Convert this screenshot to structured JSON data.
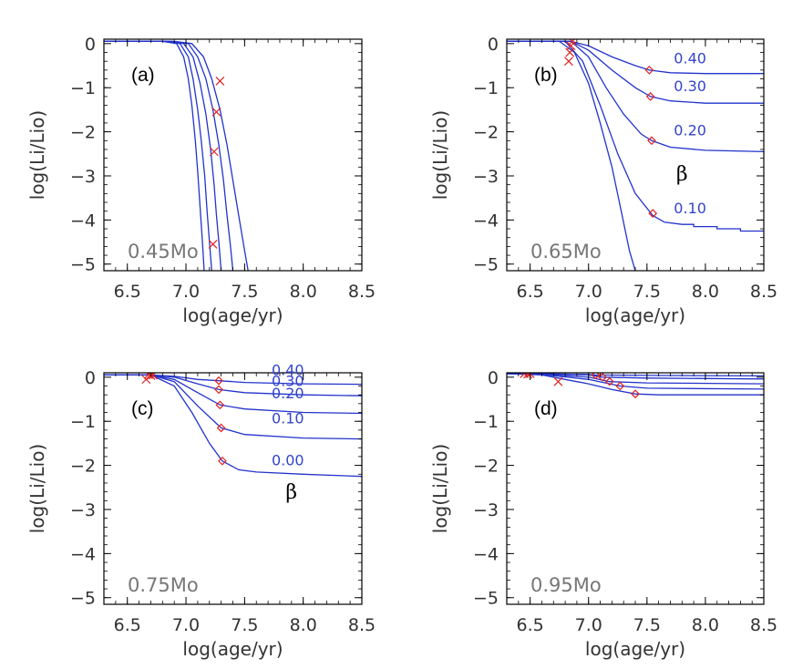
{
  "colors": {
    "curve": "#2233cc",
    "marker": "#e02020",
    "axis": "#000000",
    "text": "#333333",
    "mass_label": "#777777",
    "curve_label": "#3344cc"
  },
  "chart_data": [
    {
      "type": "line",
      "panel_label": "(a)",
      "mass_label": "0.45Mo",
      "xlabel": "log(age/yr)",
      "ylabel": "log(Li/Lio)",
      "xlim": [
        6.3,
        8.5
      ],
      "ylim": [
        -5.15,
        0.1
      ],
      "xticks": [
        6.5,
        7.0,
        7.5,
        8.0,
        8.5
      ],
      "xtick_labels": [
        "6.5",
        "7.0",
        "7.5",
        "8.0",
        "8.5"
      ],
      "yticks": [
        0,
        -1,
        -2,
        -3,
        -4,
        -5
      ],
      "ytick_labels": [
        "0",
        "−1",
        "−2",
        "−3",
        "−4",
        "−5"
      ],
      "beta_symbol": "",
      "series": [
        {
          "name": "curve-1",
          "x": [
            6.3,
            6.8,
            6.92,
            6.98,
            7.02,
            7.05,
            7.08,
            7.1,
            7.12,
            7.14,
            7.155
          ],
          "y": [
            0.05,
            0.05,
            0.0,
            -0.3,
            -0.8,
            -1.4,
            -2.2,
            -2.9,
            -3.7,
            -4.5,
            -5.15
          ]
        },
        {
          "name": "curve-2",
          "x": [
            6.3,
            6.82,
            6.95,
            7.02,
            7.06,
            7.1,
            7.13,
            7.16,
            7.18,
            7.2,
            7.22
          ],
          "y": [
            0.05,
            0.05,
            0.0,
            -0.3,
            -0.8,
            -1.5,
            -2.2,
            -3.0,
            -3.8,
            -4.5,
            -5.15
          ]
        },
        {
          "name": "curve-3",
          "x": [
            6.3,
            6.85,
            6.98,
            7.06,
            7.12,
            7.17,
            7.21,
            7.24,
            7.26,
            7.28,
            7.3
          ],
          "y": [
            0.05,
            0.05,
            0.0,
            -0.3,
            -0.9,
            -1.6,
            -2.4,
            -3.2,
            -3.9,
            -4.5,
            -5.15
          ]
        },
        {
          "name": "curve-4",
          "x": [
            6.3,
            6.88,
            7.02,
            7.1,
            7.17,
            7.23,
            7.28,
            7.32,
            7.35,
            7.38,
            7.4
          ],
          "y": [
            0.05,
            0.05,
            0.0,
            -0.3,
            -0.8,
            -1.5,
            -2.3,
            -3.1,
            -3.9,
            -4.6,
            -5.15
          ]
        },
        {
          "name": "curve-5",
          "x": [
            6.3,
            6.9,
            7.05,
            7.15,
            7.22,
            7.29,
            7.35,
            7.4,
            7.45,
            7.5,
            7.53
          ],
          "y": [
            0.05,
            0.05,
            0.0,
            -0.3,
            -0.8,
            -1.5,
            -2.3,
            -3.1,
            -3.9,
            -4.7,
            -5.15
          ]
        }
      ],
      "markers": [
        {
          "symbol": "x",
          "x": 7.29,
          "y": -0.85
        },
        {
          "symbol": "x",
          "x": 7.26,
          "y": -1.55
        },
        {
          "symbol": "x",
          "x": 7.24,
          "y": -2.45
        },
        {
          "symbol": "x",
          "x": 7.23,
          "y": -4.55
        }
      ],
      "curve_labels": []
    },
    {
      "type": "line",
      "panel_label": "(b)",
      "mass_label": "0.65Mo",
      "xlabel": "log(age/yr)",
      "ylabel": "log(Li/Lio)",
      "xlim": [
        6.3,
        8.5
      ],
      "ylim": [
        -5.15,
        0.1
      ],
      "xticks": [
        6.5,
        7.0,
        7.5,
        8.0,
        8.5
      ],
      "xtick_labels": [
        "6.5",
        "7.0",
        "7.5",
        "8.0",
        "8.5"
      ],
      "yticks": [
        0,
        -1,
        -2,
        -3,
        -4,
        -5
      ],
      "ytick_labels": [
        "0",
        "−1",
        "−2",
        "−3",
        "−4",
        "−5"
      ],
      "beta_symbol": "β",
      "beta_position": [
        7.75,
        -3.1
      ],
      "series": [
        {
          "name": "beta-0.40",
          "x": [
            6.3,
            6.85,
            7.0,
            7.2,
            7.4,
            7.52,
            7.7,
            8.0,
            8.5
          ],
          "y": [
            0.05,
            0.05,
            -0.05,
            -0.3,
            -0.5,
            -0.6,
            -0.66,
            -0.68,
            -0.68
          ]
        },
        {
          "name": "beta-0.30",
          "x": [
            6.3,
            6.85,
            7.0,
            7.2,
            7.4,
            7.53,
            7.7,
            8.0,
            8.5
          ],
          "y": [
            0.05,
            0.05,
            -0.15,
            -0.6,
            -1.0,
            -1.2,
            -1.3,
            -1.35,
            -1.35
          ]
        },
        {
          "name": "beta-0.20",
          "x": [
            6.3,
            6.85,
            7.0,
            7.15,
            7.3,
            7.45,
            7.54,
            7.7,
            8.0,
            8.5
          ],
          "y": [
            0.05,
            0.05,
            -0.3,
            -1.0,
            -1.6,
            -2.05,
            -2.2,
            -2.35,
            -2.42,
            -2.45
          ]
        },
        {
          "name": "beta-0.10",
          "x": [
            6.3,
            6.8,
            6.95,
            7.1,
            7.25,
            7.4,
            7.55,
            7.65,
            7.8,
            7.9,
            7.9,
            8.1,
            8.1,
            8.3,
            8.3,
            8.5
          ],
          "y": [
            0.05,
            0.05,
            -0.4,
            -1.4,
            -2.5,
            -3.4,
            -3.9,
            -4.05,
            -4.1,
            -4.1,
            -4.15,
            -4.15,
            -4.2,
            -4.2,
            -4.25,
            -4.25
          ]
        },
        {
          "name": "beta-0.00",
          "x": [
            6.3,
            6.75,
            6.88,
            7.0,
            7.1,
            7.2,
            7.28,
            7.35,
            7.4
          ],
          "y": [
            0.05,
            0.05,
            -0.2,
            -0.9,
            -1.8,
            -2.8,
            -3.8,
            -4.7,
            -5.15
          ]
        }
      ],
      "markers": [
        {
          "symbol": "diamond",
          "x": 7.52,
          "y": -0.6
        },
        {
          "symbol": "diamond",
          "x": 7.53,
          "y": -1.2
        },
        {
          "symbol": "diamond",
          "x": 7.54,
          "y": -2.2
        },
        {
          "symbol": "diamond",
          "x": 7.55,
          "y": -3.85
        },
        {
          "symbol": "x",
          "x": 6.86,
          "y": 0.05
        },
        {
          "symbol": "x",
          "x": 6.85,
          "y": -0.05
        },
        {
          "symbol": "x",
          "x": 6.84,
          "y": -0.2
        },
        {
          "symbol": "x",
          "x": 6.83,
          "y": -0.4
        }
      ],
      "curve_labels": [
        {
          "text": "0.40",
          "x": 7.73,
          "y": -0.45
        },
        {
          "text": "0.30",
          "x": 7.73,
          "y": -1.08
        },
        {
          "text": "0.20",
          "x": 7.73,
          "y": -2.08
        },
        {
          "text": "0.10",
          "x": 7.73,
          "y": -3.85
        }
      ]
    },
    {
      "type": "line",
      "panel_label": "(c)",
      "mass_label": "0.75Mo",
      "xlabel": "log(age/yr)",
      "ylabel": "log(Li/Lio)",
      "xlim": [
        6.3,
        8.5
      ],
      "ylim": [
        -5.15,
        0.1
      ],
      "xticks": [
        6.5,
        7.0,
        7.5,
        8.0,
        8.5
      ],
      "xtick_labels": [
        "6.5",
        "7.0",
        "7.5",
        "8.0",
        "8.5"
      ],
      "yticks": [
        0,
        -1,
        -2,
        -3,
        -4,
        -5
      ],
      "ytick_labels": [
        "0",
        "−1",
        "−2",
        "−3",
        "−4",
        "−5"
      ],
      "beta_symbol": "β",
      "beta_position": [
        7.85,
        -2.75
      ],
      "series": [
        {
          "name": "beta-0.40",
          "x": [
            6.3,
            6.7,
            6.9,
            7.1,
            7.28,
            7.5,
            8.0,
            8.5
          ],
          "y": [
            0.05,
            0.05,
            0.02,
            -0.05,
            -0.08,
            -0.12,
            -0.15,
            -0.16
          ]
        },
        {
          "name": "beta-0.30",
          "x": [
            6.3,
            6.7,
            6.9,
            7.1,
            7.28,
            7.5,
            8.0,
            8.5
          ],
          "y": [
            0.05,
            0.05,
            0.0,
            -0.15,
            -0.28,
            -0.35,
            -0.4,
            -0.42
          ]
        },
        {
          "name": "beta-0.20",
          "x": [
            6.3,
            6.7,
            6.9,
            7.1,
            7.29,
            7.5,
            8.0,
            8.5
          ],
          "y": [
            0.05,
            0.05,
            -0.05,
            -0.35,
            -0.63,
            -0.72,
            -0.8,
            -0.82
          ]
        },
        {
          "name": "beta-0.10",
          "x": [
            6.3,
            6.7,
            6.9,
            7.1,
            7.3,
            7.5,
            8.0,
            8.5
          ],
          "y": [
            0.05,
            0.05,
            -0.1,
            -0.65,
            -1.15,
            -1.3,
            -1.38,
            -1.4
          ]
        },
        {
          "name": "beta-0.00",
          "x": [
            6.3,
            6.7,
            6.9,
            7.05,
            7.2,
            7.31,
            7.45,
            7.6,
            8.0,
            8.5
          ],
          "y": [
            0.05,
            0.05,
            -0.2,
            -0.8,
            -1.5,
            -1.9,
            -2.1,
            -2.15,
            -2.2,
            -2.25
          ]
        }
      ],
      "markers": [
        {
          "symbol": "diamond",
          "x": 7.28,
          "y": -0.08
        },
        {
          "symbol": "diamond",
          "x": 7.28,
          "y": -0.28
        },
        {
          "symbol": "diamond",
          "x": 7.29,
          "y": -0.63
        },
        {
          "symbol": "diamond",
          "x": 7.3,
          "y": -1.15
        },
        {
          "symbol": "diamond",
          "x": 7.31,
          "y": -1.9
        },
        {
          "symbol": "x",
          "x": 6.68,
          "y": 0.06
        },
        {
          "symbol": "x",
          "x": 6.7,
          "y": 0.04
        },
        {
          "symbol": "x",
          "x": 6.72,
          "y": 0.05
        },
        {
          "symbol": "x",
          "x": 6.66,
          "y": -0.05
        }
      ],
      "curve_labels": [
        {
          "text": "0.40",
          "x": 7.73,
          "y": 0.05
        },
        {
          "text": "0.30",
          "x": 7.73,
          "y": -0.2
        },
        {
          "text": "0.20",
          "x": 7.73,
          "y": -0.48
        },
        {
          "text": "0.10",
          "x": 7.73,
          "y": -1.05
        },
        {
          "text": "0.00",
          "x": 7.73,
          "y": -2.0
        }
      ]
    },
    {
      "type": "line",
      "panel_label": "(d)",
      "mass_label": "0.95Mo",
      "xlabel": "log(age/yr)",
      "ylabel": "log(Li/Lio)",
      "xlim": [
        6.3,
        8.5
      ],
      "ylim": [
        -5.15,
        0.1
      ],
      "xticks": [
        6.5,
        7.0,
        7.5,
        8.0,
        8.5
      ],
      "xtick_labels": [
        "6.5",
        "7.0",
        "7.5",
        "8.0",
        "8.5"
      ],
      "yticks": [
        0,
        -1,
        -2,
        -3,
        -4,
        -5
      ],
      "ytick_labels": [
        "0",
        "−1",
        "−2",
        "−3",
        "−4",
        "−5"
      ],
      "beta_symbol": "",
      "series": [
        {
          "name": "beta-0.40",
          "x": [
            6.3,
            6.6,
            7.0,
            7.06,
            7.5,
            8.5
          ],
          "y": [
            0.08,
            0.08,
            0.06,
            0.05,
            0.04,
            0.03
          ]
        },
        {
          "name": "beta-0.30",
          "x": [
            6.3,
            6.6,
            7.0,
            7.12,
            7.5,
            8.5
          ],
          "y": [
            0.08,
            0.08,
            0.05,
            0.0,
            -0.02,
            -0.04
          ]
        },
        {
          "name": "beta-0.20",
          "x": [
            6.3,
            6.6,
            7.0,
            7.18,
            7.5,
            8.5
          ],
          "y": [
            0.08,
            0.07,
            0.0,
            -0.1,
            -0.13,
            -0.15
          ]
        },
        {
          "name": "beta-0.10",
          "x": [
            6.3,
            6.6,
            7.0,
            7.27,
            7.5,
            8.5
          ],
          "y": [
            0.08,
            0.06,
            -0.05,
            -0.2,
            -0.25,
            -0.27
          ]
        },
        {
          "name": "beta-0.00",
          "x": [
            6.3,
            6.6,
            6.8,
            7.0,
            7.2,
            7.4,
            7.6,
            8.5
          ],
          "y": [
            0.08,
            0.05,
            -0.05,
            -0.15,
            -0.28,
            -0.38,
            -0.4,
            -0.4
          ]
        }
      ],
      "markers": [
        {
          "symbol": "diamond",
          "x": 7.06,
          "y": 0.05
        },
        {
          "symbol": "diamond",
          "x": 7.12,
          "y": 0.0
        },
        {
          "symbol": "diamond",
          "x": 7.18,
          "y": -0.1
        },
        {
          "symbol": "diamond",
          "x": 7.27,
          "y": -0.2
        },
        {
          "symbol": "diamond",
          "x": 7.4,
          "y": -0.38
        },
        {
          "symbol": "x",
          "x": 6.45,
          "y": 0.08
        },
        {
          "symbol": "x",
          "x": 6.48,
          "y": 0.07
        },
        {
          "symbol": "x",
          "x": 6.5,
          "y": 0.08
        },
        {
          "symbol": "x",
          "x": 6.74,
          "y": -0.1
        }
      ],
      "curve_labels": []
    }
  ]
}
